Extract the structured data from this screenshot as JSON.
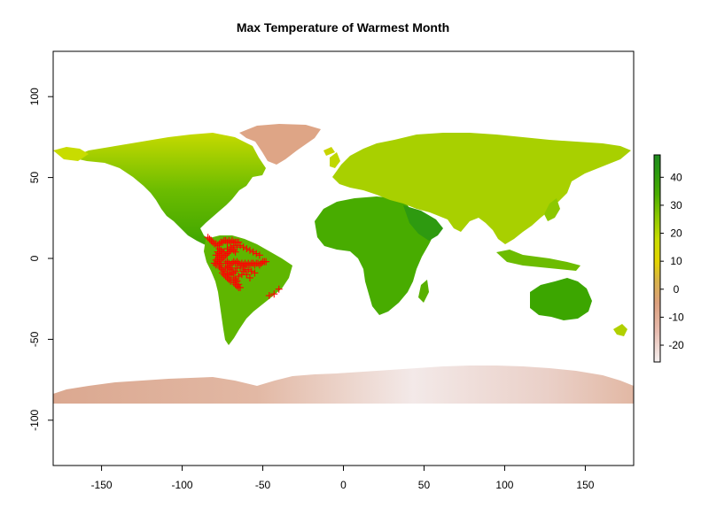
{
  "chart_data": {
    "type": "raster-map",
    "title": "Max Temperature of Warmest Month",
    "xlim": [
      -180,
      180
    ],
    "ylim": [
      -128,
      128
    ],
    "x_ticks": [
      -150,
      -100,
      -50,
      0,
      50,
      100,
      150
    ],
    "y_ticks": [
      100,
      50,
      0,
      -50,
      -100
    ],
    "raster_lat_range": [
      -90,
      84
    ],
    "legend": {
      "position": "right",
      "range": [
        -26,
        48
      ],
      "ticks": [
        40,
        30,
        20,
        10,
        0,
        -10,
        -20
      ],
      "color_stops": [
        {
          "value": -26,
          "color": "#f5f0f0"
        },
        {
          "value": -15,
          "color": "#e8bcb0"
        },
        {
          "value": -5,
          "color": "#dca07e"
        },
        {
          "value": 3,
          "color": "#d8b24a"
        },
        {
          "value": 10,
          "color": "#e3d400"
        },
        {
          "value": 18,
          "color": "#c8dc00"
        },
        {
          "value": 26,
          "color": "#8cc800"
        },
        {
          "value": 34,
          "color": "#4aae00"
        },
        {
          "value": 42,
          "color": "#2a9a10"
        },
        {
          "value": 48,
          "color": "#1f8a1f"
        }
      ]
    },
    "occurrence_marker": {
      "shape": "plus",
      "color": "#ff0000"
    },
    "occurrences": [
      [
        -84,
        13
      ],
      [
        -83,
        12
      ],
      [
        -82,
        11
      ],
      [
        -81,
        10
      ],
      [
        -80,
        9
      ],
      [
        -79,
        9
      ],
      [
        -78,
        8
      ],
      [
        -77,
        9
      ],
      [
        -76,
        10
      ],
      [
        -75,
        10
      ],
      [
        -74,
        11
      ],
      [
        -73,
        11
      ],
      [
        -72,
        10
      ],
      [
        -71,
        11
      ],
      [
        -70,
        10
      ],
      [
        -69,
        11
      ],
      [
        -68,
        10
      ],
      [
        -67,
        10
      ],
      [
        -66,
        10
      ],
      [
        -65,
        10
      ],
      [
        -77,
        6
      ],
      [
        -76,
        5
      ],
      [
        -75,
        4
      ],
      [
        -77,
        3
      ],
      [
        -76,
        2
      ],
      [
        -77,
        1
      ],
      [
        -78,
        0
      ],
      [
        -79,
        -1
      ],
      [
        -78,
        -2
      ],
      [
        -77,
        -3
      ],
      [
        -76,
        -1
      ],
      [
        -75,
        0
      ],
      [
        -74,
        1
      ],
      [
        -73,
        2
      ],
      [
        -72,
        3
      ],
      [
        -71,
        4
      ],
      [
        -70,
        5
      ],
      [
        -69,
        6
      ],
      [
        -68,
        5
      ],
      [
        -67,
        4
      ],
      [
        -76,
        -4
      ],
      [
        -77,
        -5
      ],
      [
        -76,
        -6
      ],
      [
        -75,
        -7
      ],
      [
        -74,
        -8
      ],
      [
        -75,
        -9
      ],
      [
        -74,
        -10
      ],
      [
        -73,
        -11
      ],
      [
        -72,
        -12
      ],
      [
        -71,
        -13
      ],
      [
        -70,
        -14
      ],
      [
        -68,
        -15
      ],
      [
        -67,
        -16
      ],
      [
        -66,
        -17
      ],
      [
        -65,
        -18
      ],
      [
        -64,
        -18
      ],
      [
        -65,
        -16
      ],
      [
        -66,
        -14
      ],
      [
        -67,
        -13
      ],
      [
        -68,
        -12
      ],
      [
        -73,
        -3
      ],
      [
        -72,
        -2
      ],
      [
        -71,
        -3
      ],
      [
        -70,
        -4
      ],
      [
        -69,
        -3
      ],
      [
        -68,
        -2
      ],
      [
        -67,
        -3
      ],
      [
        -66,
        -2
      ],
      [
        -65,
        -3
      ],
      [
        -64,
        -4
      ],
      [
        -63,
        -3
      ],
      [
        -62,
        -4
      ],
      [
        -61,
        -3
      ],
      [
        -60,
        -4
      ],
      [
        -59,
        -3
      ],
      [
        -58,
        -4
      ],
      [
        -57,
        -3
      ],
      [
        -56,
        -3
      ],
      [
        -55,
        -4
      ],
      [
        -54,
        -3
      ],
      [
        -53,
        -3
      ],
      [
        -52,
        -4
      ],
      [
        -51,
        -3
      ],
      [
        -50,
        -2
      ],
      [
        -49,
        -2
      ],
      [
        -48,
        -2
      ],
      [
        -79,
        -4
      ],
      [
        -80,
        -3
      ],
      [
        -79,
        2
      ],
      [
        -78,
        4
      ],
      [
        -73,
        -6
      ],
      [
        -72,
        -5
      ],
      [
        -71,
        -6
      ],
      [
        -70,
        -7
      ],
      [
        -69,
        -6
      ],
      [
        -72,
        -9
      ],
      [
        -71,
        -10
      ],
      [
        -70,
        -10
      ],
      [
        -69,
        -9
      ],
      [
        -68,
        -9
      ],
      [
        -62,
        -8
      ],
      [
        -60,
        -10
      ],
      [
        -58,
        -12
      ],
      [
        -46,
        -23
      ],
      [
        -40,
        -19
      ],
      [
        -43,
        -22
      ],
      [
        -74,
        4
      ],
      [
        -72,
        6
      ],
      [
        -70,
        7
      ],
      [
        -68,
        8
      ],
      [
        -66,
        7
      ],
      [
        -64,
        8
      ],
      [
        -62,
        7
      ],
      [
        -60,
        6
      ],
      [
        -58,
        5
      ],
      [
        -56,
        4
      ],
      [
        -54,
        3
      ],
      [
        -52,
        2
      ],
      [
        -63,
        -10
      ],
      [
        -65,
        -11
      ],
      [
        -67,
        -8
      ],
      [
        -66,
        -6
      ],
      [
        -64,
        -6
      ],
      [
        -62,
        -5
      ],
      [
        -61,
        -7
      ],
      [
        -59,
        -7
      ],
      [
        -57,
        -8
      ],
      [
        -55,
        -9
      ]
    ]
  }
}
